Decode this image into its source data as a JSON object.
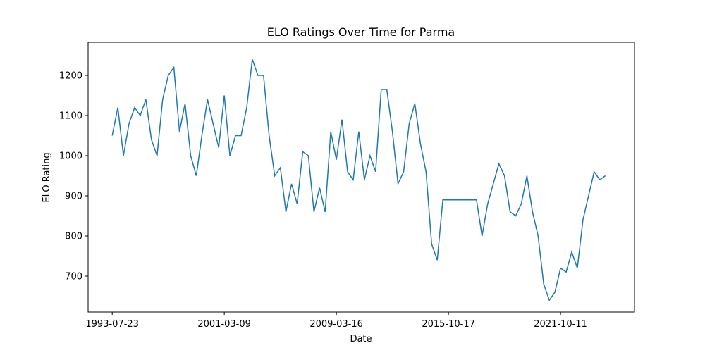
{
  "chart_data": {
    "type": "line",
    "title": "ELO Ratings Over Time for Parma",
    "xlabel": "Date",
    "ylabel": "ELO Rating",
    "x": [
      0,
      10,
      20,
      30,
      40,
      50,
      60,
      70,
      80,
      90,
      100,
      110,
      120,
      130,
      140,
      150,
      160,
      170,
      180,
      190,
      200,
      210,
      220,
      230,
      240,
      250,
      260,
      270,
      280,
      290,
      300,
      310,
      320,
      330,
      340,
      350,
      360,
      370,
      380,
      390,
      400,
      410,
      420,
      430,
      440,
      450,
      460,
      470,
      480,
      490,
      500,
      510,
      520,
      530,
      540,
      550,
      560,
      570,
      580,
      590,
      600,
      610,
      620,
      630,
      640,
      650,
      660,
      670,
      680,
      690,
      700,
      710,
      720,
      730,
      740,
      750,
      760,
      770,
      780,
      790,
      800,
      810,
      820,
      830,
      840,
      850,
      860,
      870,
      880
    ],
    "series": [
      {
        "name": "Parma",
        "color": "#1f77b4",
        "values": [
          1050,
          1120,
          1000,
          1080,
          1120,
          1100,
          1140,
          1040,
          1000,
          1140,
          1200,
          1220,
          1060,
          1130,
          1000,
          950,
          1050,
          1140,
          1080,
          1020,
          1150,
          1000,
          1050,
          1050,
          1120,
          1240,
          1200,
          1200,
          1050,
          950,
          970,
          860,
          930,
          880,
          1010,
          1000,
          860,
          920,
          860,
          1060,
          990,
          1090,
          960,
          940,
          1060,
          940,
          1000,
          960,
          1165,
          1165,
          1060,
          930,
          960,
          1080,
          1130,
          1030,
          960,
          780,
          740,
          890,
          890,
          890,
          890,
          890,
          890,
          890,
          800,
          880,
          930,
          980,
          950,
          860,
          850,
          880,
          950,
          860,
          800,
          680,
          640,
          660,
          720,
          710,
          760,
          720,
          840,
          900,
          960,
          940,
          950
        ]
      }
    ],
    "xlim": [
      -43,
      932
    ],
    "ylim": [
      610.5,
      1282.5
    ],
    "xticks": [
      {
        "value": 0,
        "label": "1993-07-23"
      },
      {
        "value": 200,
        "label": "2001-03-09"
      },
      {
        "value": 400,
        "label": "2009-03-16"
      },
      {
        "value": 600,
        "label": "2015-10-17"
      },
      {
        "value": 800,
        "label": "2021-10-11"
      }
    ],
    "yticks": [
      700,
      800,
      900,
      1000,
      1100,
      1200
    ],
    "grid": false
  }
}
